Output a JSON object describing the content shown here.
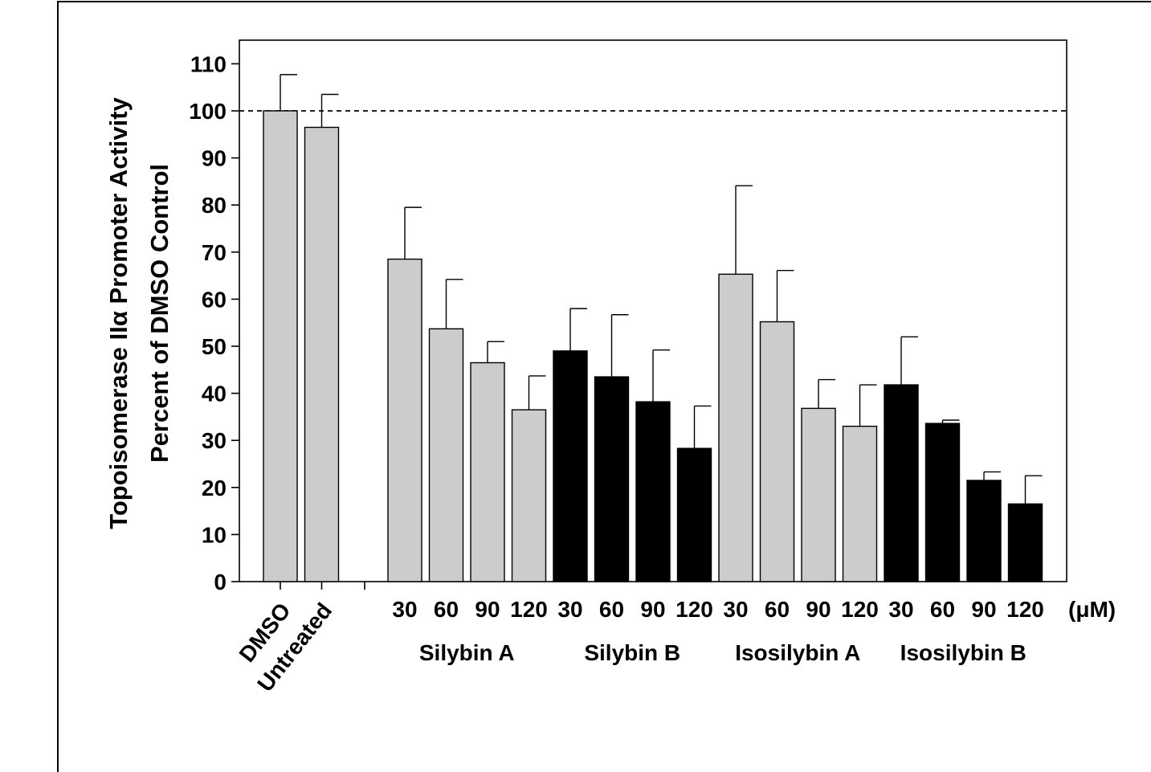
{
  "chart_data": {
    "type": "bar",
    "ylabel_line1": "Topoisomerase IIα Promoter Activity",
    "ylabel_line2": "Percent of DMSO Control",
    "ylim": [
      0,
      115
    ],
    "yticks": [
      "0",
      "10",
      "20",
      "30",
      "40",
      "50",
      "60",
      "70",
      "80",
      "90",
      "100",
      "110"
    ],
    "reference_line": 100,
    "unit_label": "(μM)",
    "colors": {
      "gray": "#cccccc",
      "black": "#000000"
    },
    "controls": [
      {
        "label": "DMSO",
        "value": 100,
        "error": 7.7,
        "color": "gray"
      },
      {
        "label": "Untreated",
        "value": 96.5,
        "error": 7.0,
        "color": "gray"
      }
    ],
    "groups": [
      {
        "name": "Silybin A",
        "color": "gray",
        "bars": [
          {
            "dose": "30",
            "value": 68.5,
            "error": 11.0
          },
          {
            "dose": "60",
            "value": 53.7,
            "error": 10.5
          },
          {
            "dose": "90",
            "value": 46.5,
            "error": 4.5
          },
          {
            "dose": "120",
            "value": 36.5,
            "error": 7.2
          }
        ]
      },
      {
        "name": "Silybin B",
        "color": "black",
        "bars": [
          {
            "dose": "30",
            "value": 49.0,
            "error": 9.0
          },
          {
            "dose": "60",
            "value": 43.5,
            "error": 13.2
          },
          {
            "dose": "90",
            "value": 38.2,
            "error": 11.0
          },
          {
            "dose": "120",
            "value": 28.3,
            "error": 9.0
          }
        ]
      },
      {
        "name": "Isosilybin A",
        "color": "gray",
        "bars": [
          {
            "dose": "30",
            "value": 65.3,
            "error": 18.8
          },
          {
            "dose": "60",
            "value": 55.2,
            "error": 10.9
          },
          {
            "dose": "90",
            "value": 36.8,
            "error": 6.1
          },
          {
            "dose": "120",
            "value": 33.0,
            "error": 8.8
          }
        ]
      },
      {
        "name": "Isosilybin B",
        "color": "black",
        "bars": [
          {
            "dose": "30",
            "value": 41.8,
            "error": 10.2
          },
          {
            "dose": "60",
            "value": 33.6,
            "error": 0.7
          },
          {
            "dose": "90",
            "value": 21.5,
            "error": 1.8
          },
          {
            "dose": "120",
            "value": 16.5,
            "error": 6.0
          }
        ]
      }
    ]
  }
}
